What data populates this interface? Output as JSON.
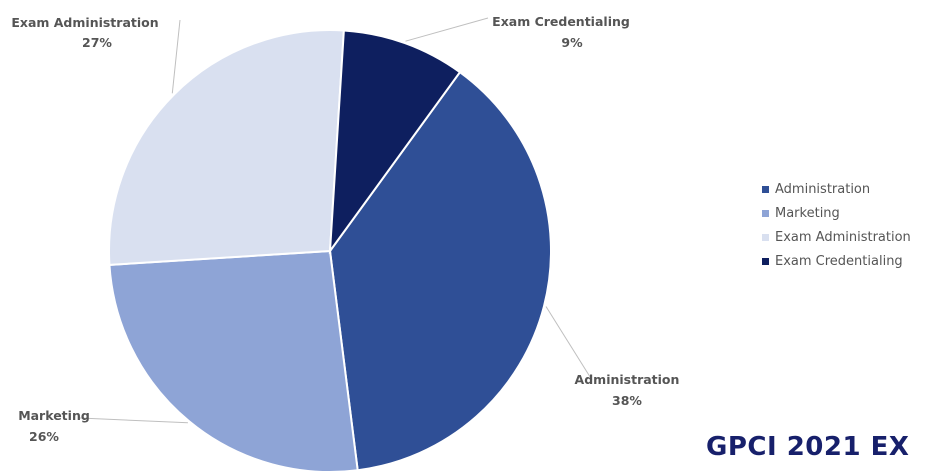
{
  "chart_data": {
    "type": "pie",
    "categories": [
      "Administration",
      "Marketing",
      "Exam Administration",
      "Exam Credentialing"
    ],
    "values": [
      38,
      26,
      27,
      9
    ],
    "value_labels": [
      "38%",
      "26%",
      "27%",
      "9%"
    ],
    "colors": [
      "#2f4f96",
      "#8ea4d6",
      "#d9e0f0",
      "#0e1f5f"
    ],
    "start_angle_deg": 36,
    "direction": "clockwise",
    "legend_position": "right"
  },
  "footer": {
    "title": "GPCI 2021 EX"
  }
}
